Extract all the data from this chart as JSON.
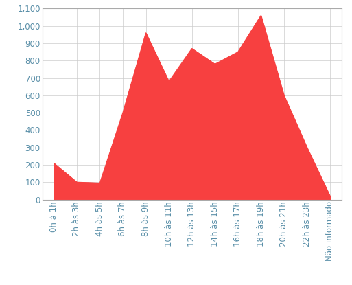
{
  "categories": [
    "0h à 1h",
    "2h às 3h",
    "4h às 5h",
    "6h às 7h",
    "8h às 9h",
    "10h às 11h",
    "12h às 13h",
    "14h às 15h",
    "16h às 17h",
    "18h às 19h",
    "20h às 21h",
    "22h às 23h",
    "Não informado"
  ],
  "values": [
    210,
    100,
    95,
    500,
    960,
    680,
    870,
    780,
    850,
    1060,
    600,
    300,
    20
  ],
  "fill_color": "#F74040",
  "line_color": "#F74040",
  "background_color": "#ffffff",
  "grid_color": "#cccccc",
  "ylim": [
    0,
    1100
  ],
  "yticks": [
    0,
    100,
    200,
    300,
    400,
    500,
    600,
    700,
    800,
    900,
    1000,
    1100
  ],
  "ytick_labels": [
    "0",
    "100",
    "200",
    "300",
    "400",
    "500",
    "600",
    "700",
    "800",
    "900",
    "1,000",
    "1,100"
  ],
  "tick_color": "#5a8fa8",
  "tick_fontsize": 8.5,
  "spine_color": "#aaaaaa"
}
